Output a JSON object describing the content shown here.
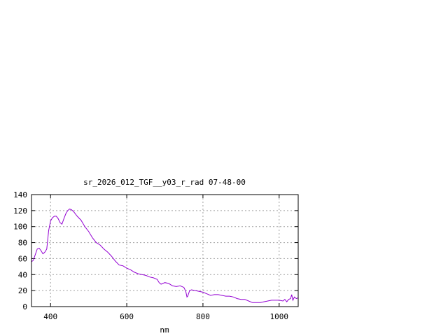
{
  "chart_data": {
    "type": "line",
    "title": "sr_2026_012_TGF__y03_r_rad 07-48-00",
    "xlabel": "nm",
    "ylabel": "",
    "xlim": [
      350,
      1050
    ],
    "ylim": [
      0,
      140
    ],
    "x_ticks": [
      400,
      600,
      800,
      1000
    ],
    "y_ticks": [
      0,
      20,
      40,
      60,
      80,
      100,
      120,
      140
    ],
    "grid": true,
    "legend": "none",
    "line_color": "#9400d3",
    "series": [
      {
        "x": [
          350,
          355,
          360,
          365,
          370,
          375,
          380,
          385,
          390,
          395,
          400,
          405,
          410,
          415,
          420,
          425,
          430,
          435,
          440,
          445,
          450,
          455,
          460,
          465,
          470,
          480,
          490,
          500,
          510,
          520,
          530,
          540,
          550,
          560,
          570,
          580,
          590,
          600,
          610,
          620,
          630,
          640,
          650,
          660,
          670,
          680,
          685,
          690,
          700,
          710,
          720,
          730,
          740,
          750,
          755,
          758,
          760,
          765,
          770,
          780,
          790,
          800,
          810,
          820,
          830,
          840,
          850,
          860,
          870,
          880,
          890,
          900,
          910,
          920,
          930,
          940,
          950,
          960,
          970,
          980,
          990,
          1000,
          1010,
          1015,
          1020,
          1025,
          1030,
          1033,
          1036,
          1040,
          1045,
          1050
        ],
        "y": [
          56,
          58,
          65,
          72,
          73,
          70,
          66,
          68,
          72,
          95,
          107,
          111,
          113,
          113,
          110,
          105,
          103,
          110,
          116,
          120,
          122,
          121,
          119,
          116,
          113,
          108,
          100,
          94,
          86,
          80,
          77,
          72,
          68,
          63,
          57,
          52,
          51,
          48,
          46,
          43,
          41,
          40,
          39,
          37,
          36,
          34,
          30,
          28,
          30,
          29,
          26,
          25,
          26,
          24,
          19,
          12,
          13,
          20,
          21,
          20,
          19,
          18,
          16,
          14,
          15,
          15,
          14,
          13,
          13,
          12,
          10,
          9,
          9,
          7,
          5,
          5,
          5,
          6,
          7,
          8,
          8,
          8,
          7,
          9,
          6,
          9,
          10,
          15,
          8,
          12,
          10,
          11
        ]
      }
    ]
  }
}
